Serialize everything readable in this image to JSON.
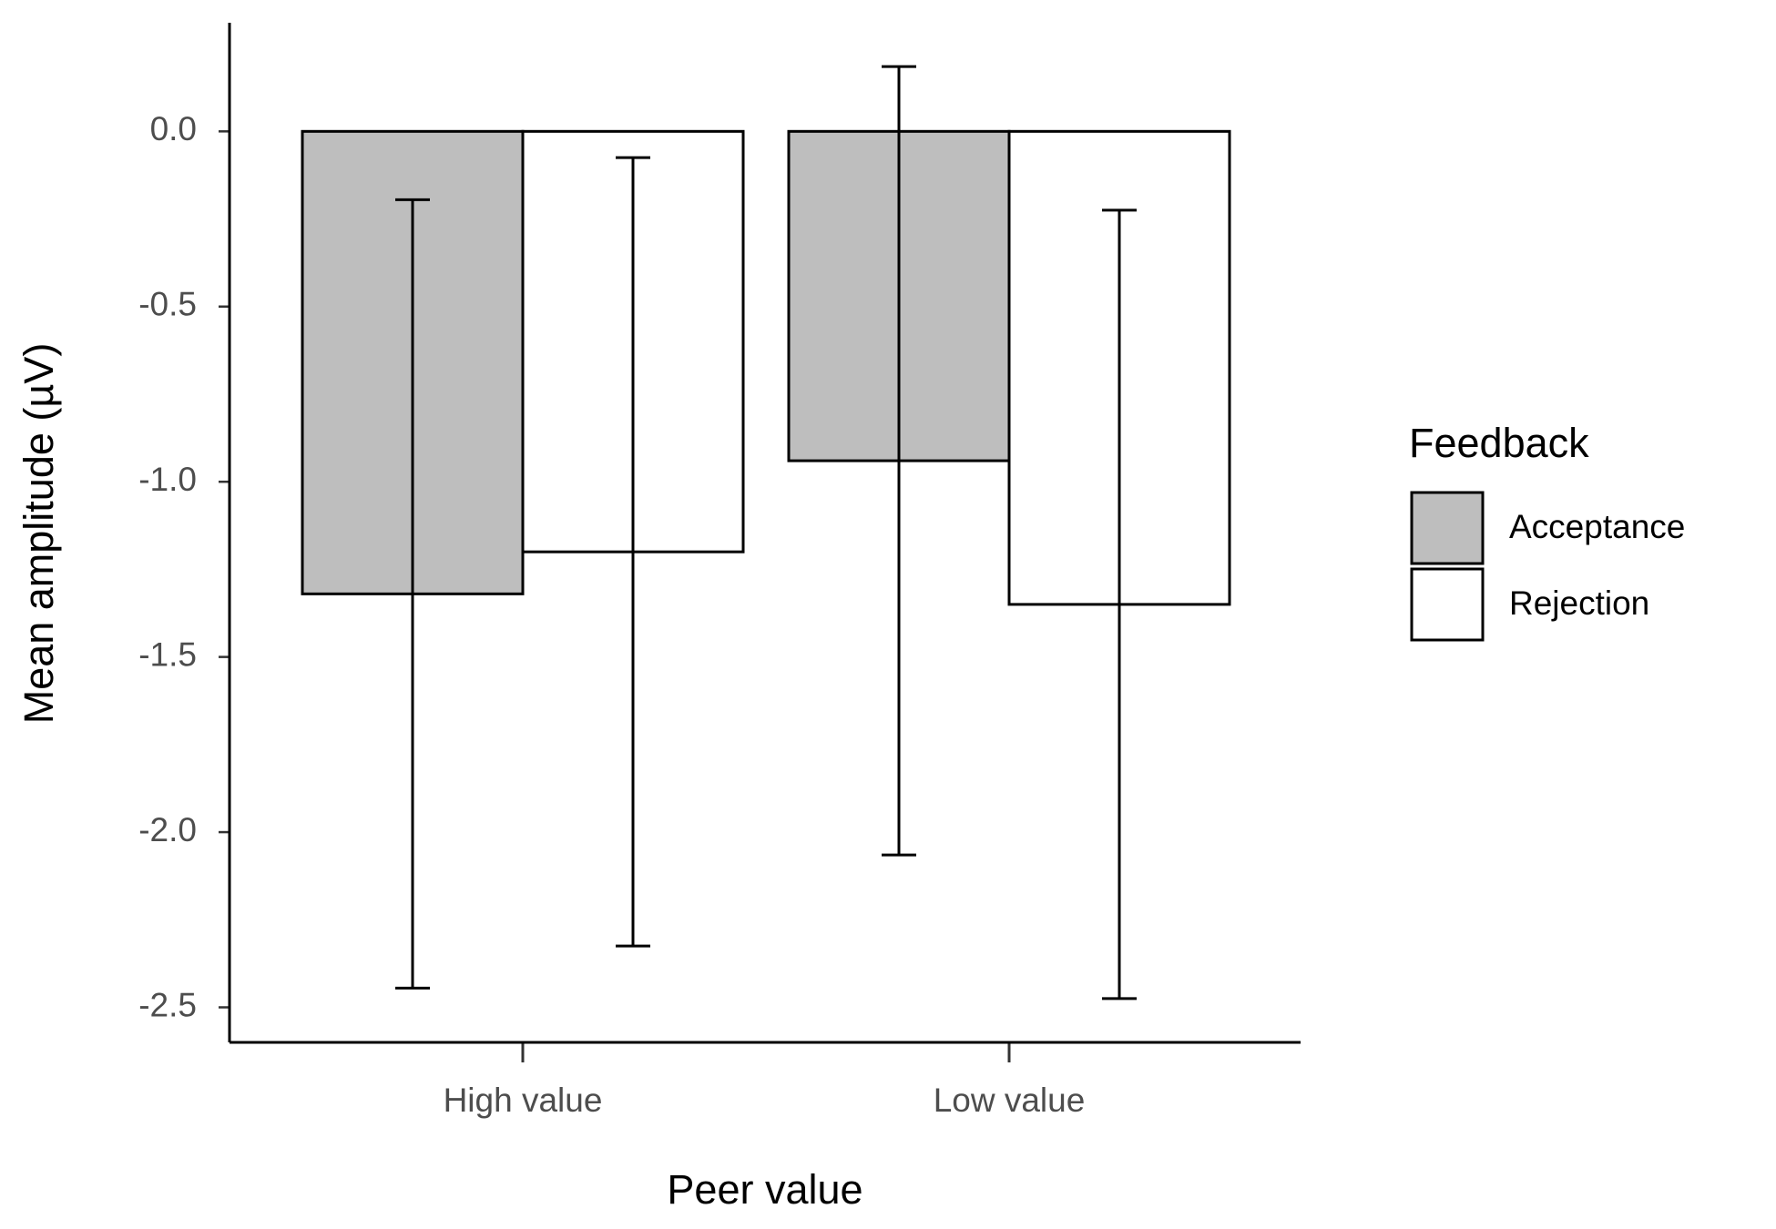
{
  "chart_data": {
    "type": "bar",
    "xlabel": "Peer value",
    "ylabel": "Mean amplitude (µV)",
    "legend_title": "Feedback",
    "legend": "right",
    "categories": [
      "High value",
      "Low value"
    ],
    "series": [
      {
        "name": "Acceptance",
        "color": "#bebebe",
        "values": [
          -1.32,
          -0.94
        ],
        "errors": [
          1.125,
          1.125
        ]
      },
      {
        "name": "Rejection",
        "color": "#ffffff",
        "values": [
          -1.2,
          -1.35
        ],
        "errors": [
          1.125,
          1.125
        ]
      }
    ],
    "ylim": [
      -2.6,
      0.31
    ],
    "yticks": [
      {
        "value": 0,
        "label": "0.0"
      },
      -0.5,
      {
        "value": -1,
        "label": "-1.0"
      },
      -1.5,
      {
        "value": -2,
        "label": "-2.0"
      },
      -2.5
    ]
  }
}
